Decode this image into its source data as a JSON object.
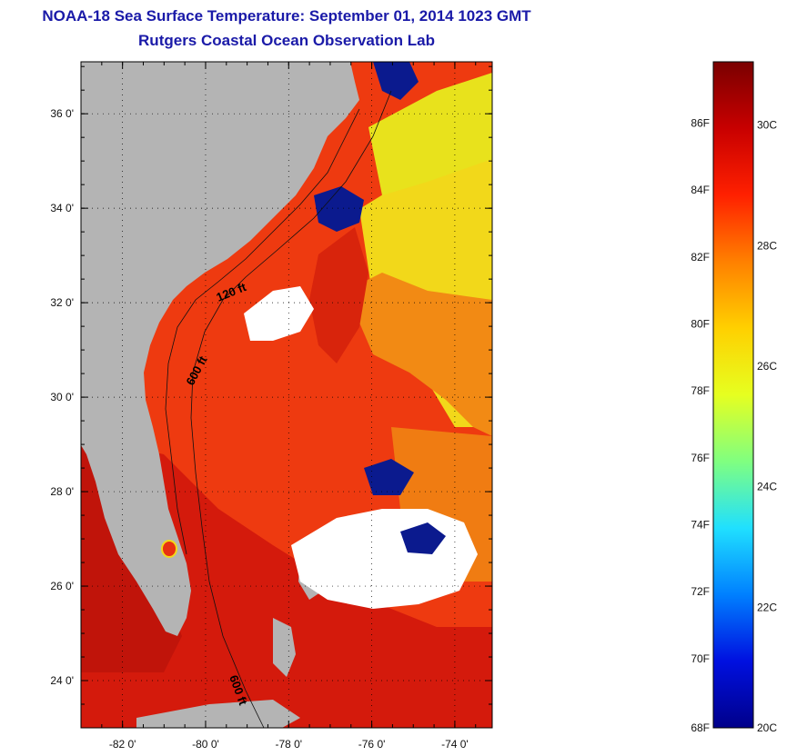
{
  "header": {
    "title": "NOAA-18 Sea Surface Temperature:  September 01, 2014 1023 GMT",
    "subtitle": "Rutgers Coastal Ocean Observation Lab"
  },
  "map": {
    "lat_range": [
      23,
      37.1
    ],
    "lon_range": [
      -83,
      -73.1
    ],
    "lat_ticks": [
      {
        "value": 36,
        "label": "36 0'"
      },
      {
        "value": 34,
        "label": "34 0'"
      },
      {
        "value": 32,
        "label": "32 0'"
      },
      {
        "value": 30,
        "label": "30 0'"
      },
      {
        "value": 28,
        "label": "28 0'"
      },
      {
        "value": 26,
        "label": "26 0'"
      },
      {
        "value": 24,
        "label": "24 0'"
      }
    ],
    "lon_ticks": [
      {
        "value": -82,
        "label": "-82 0'"
      },
      {
        "value": -80,
        "label": "-80 0'"
      },
      {
        "value": -78,
        "label": "-78 0'"
      },
      {
        "value": -76,
        "label": "-76 0'"
      },
      {
        "value": -74,
        "label": "-74 0'"
      }
    ],
    "contour_labels": [
      "120 ft",
      "600 ft",
      "600 ft"
    ],
    "colors": {
      "land": "#b4b4b4",
      "cloud": "#ffffff",
      "cold": "#0b1a8e",
      "warm_red": "#e8200e",
      "orange": "#f07a10",
      "yellow": "#f2e016",
      "dark_red": "#b8140a"
    }
  },
  "colorbar": {
    "f_labels": [
      "86F",
      "84F",
      "82F",
      "80F",
      "78F",
      "76F",
      "74F",
      "72F",
      "70F",
      "68F"
    ],
    "c_labels": [
      "30C",
      "28C",
      "26C",
      "24C",
      "22C",
      "20C"
    ],
    "colors": [
      "#7a0000",
      "#c80000",
      "#ff2000",
      "#ff8000",
      "#ffd000",
      "#e6ff20",
      "#80ff80",
      "#20e0ff",
      "#0080ff",
      "#0010e0",
      "#00008a"
    ]
  }
}
